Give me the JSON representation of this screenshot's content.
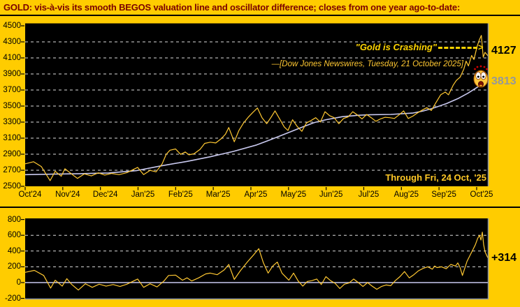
{
  "title": "GOLD:  vis-à-vis its smooth BEGOS valuation line and oscillator difference; closes from one year ago-to-date:",
  "colors": {
    "background": "#FFCC00",
    "title_text": "#7B0000",
    "panel_bg": "#000000",
    "grid": "#DCDCDC",
    "frame": "#8A94A6",
    "price_line": "#FFC832",
    "smooth_line": "#C9C9EF",
    "zero_line": "#C9C9EF",
    "annotation_gold": "#FFD400"
  },
  "annotations": {
    "crashing_quote": "\"Gold is Crashing\"",
    "arrow_head": ">",
    "news_source": "—[Dow Jones Newswires, Tuesday, 21 October 2025]",
    "through_date": "Through Fri, 24 Oct, '25",
    "last_price_label": "4127",
    "valuation_label": "3813",
    "oscillator_label": "+314",
    "emoji": "shocked-face"
  },
  "chart_data": [
    {
      "type": "line",
      "title": "GOLD price vs smooth BEGOS valuation line",
      "ylim": [
        2500,
        4500
      ],
      "yticks": [
        4500,
        4300,
        4100,
        3900,
        3700,
        3500,
        3300,
        3100,
        2900,
        2700,
        2500
      ],
      "xticklabels": [
        "Oct'24",
        "Nov'24",
        "Dec'24",
        "Jan'25",
        "Feb'25",
        "Mar'25",
        "Apr'25",
        "May'25",
        "Jun'25",
        "Jul'25",
        "Aug'25",
        "Sep'25",
        "Oct'25"
      ],
      "grid": "dashed-horizontal",
      "legend": "none",
      "series": [
        {
          "name": "gold-close",
          "color": "#FFC832",
          "points": [
            [
              0,
              2780
            ],
            [
              0.018,
              2806
            ],
            [
              0.035,
              2745
            ],
            [
              0.054,
              2570
            ],
            [
              0.065,
              2688
            ],
            [
              0.078,
              2625
            ],
            [
              0.086,
              2718
            ],
            [
              0.1,
              2655
            ],
            [
              0.113,
              2598
            ],
            [
              0.128,
              2655
            ],
            [
              0.143,
              2630
            ],
            [
              0.158,
              2668
            ],
            [
              0.172,
              2640
            ],
            [
              0.187,
              2660
            ],
            [
              0.203,
              2645
            ],
            [
              0.22,
              2670
            ],
            [
              0.243,
              2736
            ],
            [
              0.256,
              2645
            ],
            [
              0.27,
              2698
            ],
            [
              0.283,
              2680
            ],
            [
              0.296,
              2780
            ],
            [
              0.305,
              2900
            ],
            [
              0.313,
              2950
            ],
            [
              0.325,
              2965
            ],
            [
              0.336,
              2898
            ],
            [
              0.346,
              2928
            ],
            [
              0.354,
              2892
            ],
            [
              0.365,
              2905
            ],
            [
              0.378,
              2960
            ],
            [
              0.388,
              3035
            ],
            [
              0.4,
              3050
            ],
            [
              0.412,
              3040
            ],
            [
              0.424,
              3095
            ],
            [
              0.433,
              3150
            ],
            [
              0.44,
              3232
            ],
            [
              0.452,
              3055
            ],
            [
              0.462,
              3195
            ],
            [
              0.472,
              3290
            ],
            [
              0.482,
              3360
            ],
            [
              0.492,
              3420
            ],
            [
              0.502,
              3476
            ],
            [
              0.512,
              3355
            ],
            [
              0.522,
              3280
            ],
            [
              0.532,
              3365
            ],
            [
              0.54,
              3440
            ],
            [
              0.55,
              3340
            ],
            [
              0.56,
              3240
            ],
            [
              0.568,
              3196
            ],
            [
              0.578,
              3330
            ],
            [
              0.588,
              3245
            ],
            [
              0.598,
              3185
            ],
            [
              0.608,
              3290
            ],
            [
              0.618,
              3320
            ],
            [
              0.628,
              3355
            ],
            [
              0.638,
              3300
            ],
            [
              0.648,
              3430
            ],
            [
              0.658,
              3380
            ],
            [
              0.668,
              3355
            ],
            [
              0.678,
              3280
            ],
            [
              0.688,
              3345
            ],
            [
              0.698,
              3365
            ],
            [
              0.708,
              3430
            ],
            [
              0.718,
              3390
            ],
            [
              0.728,
              3340
            ],
            [
              0.738,
              3395
            ],
            [
              0.748,
              3355
            ],
            [
              0.758,
              3310
            ],
            [
              0.768,
              3340
            ],
            [
              0.778,
              3360
            ],
            [
              0.788,
              3355
            ],
            [
              0.798,
              3345
            ],
            [
              0.808,
              3390
            ],
            [
              0.818,
              3440
            ],
            [
              0.828,
              3345
            ],
            [
              0.838,
              3375
            ],
            [
              0.848,
              3415
            ],
            [
              0.858,
              3450
            ],
            [
              0.868,
              3480
            ],
            [
              0.878,
              3445
            ],
            [
              0.888,
              3545
            ],
            [
              0.898,
              3640
            ],
            [
              0.908,
              3675
            ],
            [
              0.915,
              3640
            ],
            [
              0.925,
              3760
            ],
            [
              0.932,
              3820
            ],
            [
              0.94,
              3860
            ],
            [
              0.948,
              3960
            ],
            [
              0.953,
              4060
            ],
            [
              0.958,
              4000
            ],
            [
              0.965,
              4130
            ],
            [
              0.97,
              4080
            ],
            [
              0.977,
              4250
            ],
            [
              0.982,
              4330
            ],
            [
              0.986,
              4380
            ],
            [
              0.99,
              4109
            ],
            [
              0.994,
              4170
            ],
            [
              1,
              4127
            ]
          ],
          "last_value": 4127
        },
        {
          "name": "smooth-begos-valuation",
          "color": "#C9C9EF",
          "points": [
            [
              0,
              2645
            ],
            [
              0.06,
              2651
            ],
            [
              0.12,
              2657
            ],
            [
              0.18,
              2666
            ],
            [
              0.24,
              2695
            ],
            [
              0.293,
              2754
            ],
            [
              0.35,
              2810
            ],
            [
              0.4,
              2868
            ],
            [
              0.45,
              2935
            ],
            [
              0.5,
              3015
            ],
            [
              0.53,
              3080
            ],
            [
              0.565,
              3160
            ],
            [
              0.6,
              3240
            ],
            [
              0.625,
              3295
            ],
            [
              0.65,
              3330
            ],
            [
              0.686,
              3368
            ],
            [
              0.72,
              3385
            ],
            [
              0.746,
              3392
            ],
            [
              0.79,
              3396
            ],
            [
              0.837,
              3412
            ],
            [
              0.86,
              3438
            ],
            [
              0.88,
              3470
            ],
            [
              0.91,
              3530
            ],
            [
              0.935,
              3592
            ],
            [
              0.957,
              3660
            ],
            [
              0.98,
              3745
            ],
            [
              1,
              3813
            ]
          ],
          "last_value": 3813
        }
      ]
    },
    {
      "type": "line",
      "title": "Oscillator: price minus smooth valuation",
      "ylim": [
        -200,
        800
      ],
      "yticks": [
        800,
        600,
        400,
        200,
        0,
        -200
      ],
      "grid": "dashed-horizontal",
      "zero_line": true,
      "series": [
        {
          "name": "oscillator-difference",
          "color": "#FFC832",
          "points": [
            [
              0,
              130
            ],
            [
              0.02,
              155
            ],
            [
              0.04,
              90
            ],
            [
              0.055,
              -70
            ],
            [
              0.065,
              30
            ],
            [
              0.08,
              -45
            ],
            [
              0.09,
              50
            ],
            [
              0.1,
              -20
            ],
            [
              0.115,
              -95
            ],
            [
              0.13,
              -15
            ],
            [
              0.145,
              -60
            ],
            [
              0.16,
              -20
            ],
            [
              0.175,
              -45
            ],
            [
              0.19,
              -25
            ],
            [
              0.205,
              -50
            ],
            [
              0.22,
              -20
            ],
            [
              0.243,
              45
            ],
            [
              0.256,
              -60
            ],
            [
              0.27,
              -15
            ],
            [
              0.285,
              -55
            ],
            [
              0.3,
              20
            ],
            [
              0.31,
              90
            ],
            [
              0.325,
              95
            ],
            [
              0.34,
              30
            ],
            [
              0.35,
              60
            ],
            [
              0.36,
              20
            ],
            [
              0.375,
              60
            ],
            [
              0.39,
              110
            ],
            [
              0.4,
              120
            ],
            [
              0.415,
              100
            ],
            [
              0.43,
              160
            ],
            [
              0.44,
              230
            ],
            [
              0.452,
              40
            ],
            [
              0.465,
              150
            ],
            [
              0.48,
              260
            ],
            [
              0.495,
              360
            ],
            [
              0.505,
              430
            ],
            [
              0.515,
              250
            ],
            [
              0.525,
              120
            ],
            [
              0.535,
              210
            ],
            [
              0.545,
              260
            ],
            [
              0.555,
              120
            ],
            [
              0.57,
              30
            ],
            [
              0.58,
              120
            ],
            [
              0.59,
              20
            ],
            [
              0.6,
              -45
            ],
            [
              0.61,
              15
            ],
            [
              0.62,
              25
            ],
            [
              0.63,
              45
            ],
            [
              0.64,
              -25
            ],
            [
              0.65,
              75
            ],
            [
              0.66,
              25
            ],
            [
              0.67,
              -10
            ],
            [
              0.68,
              -75
            ],
            [
              0.69,
              -20
            ],
            [
              0.7,
              -5
            ],
            [
              0.71,
              45
            ],
            [
              0.72,
              0
            ],
            [
              0.73,
              -50
            ],
            [
              0.74,
              0
            ],
            [
              0.75,
              -45
            ],
            [
              0.76,
              -85
            ],
            [
              0.77,
              -50
            ],
            [
              0.78,
              -30
            ],
            [
              0.79,
              -40
            ],
            [
              0.8,
              25
            ],
            [
              0.81,
              75
            ],
            [
              0.82,
              140
            ],
            [
              0.83,
              60
            ],
            [
              0.84,
              100
            ],
            [
              0.85,
              150
            ],
            [
              0.86,
              180
            ],
            [
              0.87,
              200
            ],
            [
              0.88,
              170
            ],
            [
              0.885,
              210
            ],
            [
              0.89,
              190
            ],
            [
              0.9,
              200
            ],
            [
              0.91,
              175
            ],
            [
              0.92,
              230
            ],
            [
              0.93,
              210
            ],
            [
              0.935,
              250
            ],
            [
              0.94,
              190
            ],
            [
              0.945,
              90
            ],
            [
              0.95,
              180
            ],
            [
              0.955,
              270
            ],
            [
              0.962,
              350
            ],
            [
              0.968,
              420
            ],
            [
              0.973,
              480
            ],
            [
              0.978,
              560
            ],
            [
              0.982,
              600
            ],
            [
              0.985,
              540
            ],
            [
              0.988,
              640
            ],
            [
              0.991,
              480
            ],
            [
              0.994,
              390
            ],
            [
              0.997,
              350
            ],
            [
              1,
              314
            ]
          ],
          "last_value": 314
        }
      ]
    }
  ]
}
